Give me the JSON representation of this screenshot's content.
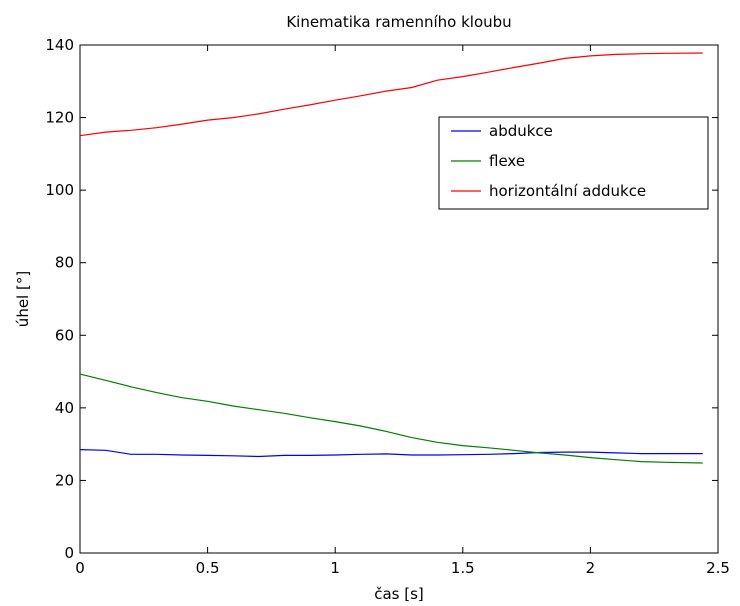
{
  "chart_data": {
    "type": "line",
    "title": "Kinematika ramenního kloubu",
    "xlabel": "čas [s]",
    "ylabel": "úhel [°]",
    "xlim": [
      0,
      2.5
    ],
    "ylim": [
      0,
      140
    ],
    "xticks": [
      0,
      0.5,
      1,
      1.5,
      2,
      2.5
    ],
    "xtick_labels": [
      "0",
      "0.5",
      "1",
      "1.5",
      "2",
      "2.5"
    ],
    "yticks": [
      0,
      20,
      40,
      60,
      80,
      100,
      120,
      140
    ],
    "ytick_labels": [
      "0",
      "20",
      "40",
      "60",
      "80",
      "100",
      "120",
      "140"
    ],
    "grid": false,
    "legend_position": "top-right",
    "x": [
      0,
      0.1,
      0.2,
      0.3,
      0.4,
      0.5,
      0.6,
      0.7,
      0.8,
      0.9,
      1.0,
      1.1,
      1.2,
      1.3,
      1.4,
      1.5,
      1.6,
      1.7,
      1.8,
      1.9,
      2.0,
      2.1,
      2.2,
      2.3,
      2.44
    ],
    "series": [
      {
        "name": "abdukce",
        "color": "#0000ff",
        "values": [
          28.5,
          28.3,
          27.2,
          27.2,
          27.0,
          26.9,
          26.8,
          26.6,
          26.9,
          26.9,
          27.0,
          27.2,
          27.3,
          27.0,
          27.0,
          27.1,
          27.2,
          27.4,
          27.7,
          27.8,
          27.8,
          27.6,
          27.4,
          27.4,
          27.4
        ]
      },
      {
        "name": "flexe",
        "color": "#008000",
        "values": [
          49.3,
          47.6,
          45.8,
          44.2,
          42.8,
          41.8,
          40.5,
          39.5,
          38.5,
          37.3,
          36.2,
          35.0,
          33.5,
          31.8,
          30.5,
          29.6,
          29.0,
          28.3,
          27.6,
          27.0,
          26.3,
          25.7,
          25.2,
          25.0,
          24.8
        ]
      },
      {
        "name": "horizontální addukce",
        "color": "#ff0000",
        "values": [
          115.0,
          116.0,
          116.5,
          117.2,
          118.2,
          119.3,
          120.0,
          121.0,
          122.3,
          123.5,
          124.8,
          126.0,
          127.3,
          128.3,
          130.3,
          131.3,
          132.5,
          133.8,
          135.0,
          136.3,
          137.0,
          137.4,
          137.6,
          137.7,
          137.8
        ]
      }
    ]
  }
}
